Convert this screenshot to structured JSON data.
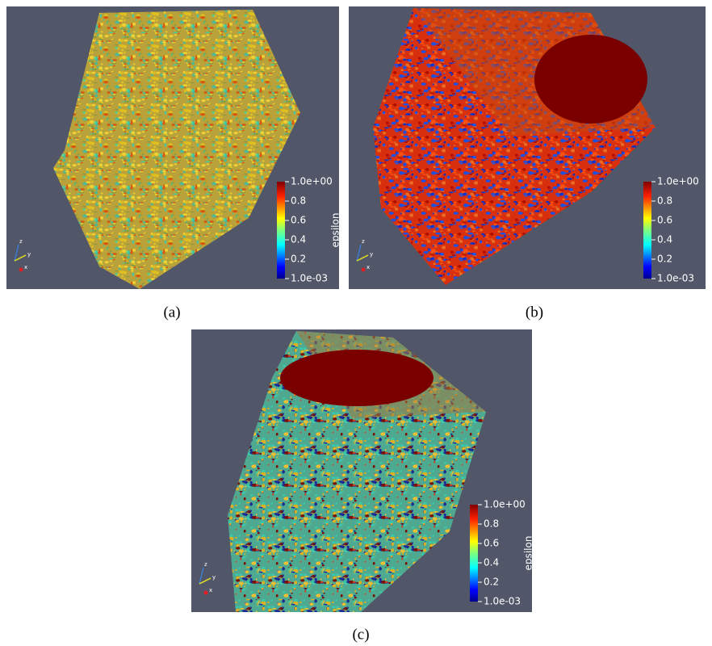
{
  "panels": [
    {
      "label": "(a)",
      "colorbar": {
        "title": "epsilon",
        "ticks": [
          "1.0e+00",
          "0.8",
          "0.6",
          "0.4",
          "0.2",
          "1.0e-03"
        ]
      },
      "axes": [
        "z",
        "y",
        "x"
      ]
    },
    {
      "label": "(b)",
      "colorbar": {
        "ticks": [
          "1.0e+00",
          "0.8",
          "0.6",
          "0.4",
          "0.2",
          "1.0e-03"
        ]
      },
      "axes": [
        "z",
        "y",
        "x"
      ]
    },
    {
      "label": "(c)",
      "colorbar": {
        "title": "epsilon",
        "ticks": [
          "1.0e+00",
          "0.8",
          "0.6",
          "0.4",
          "0.2",
          "1.0e-03"
        ]
      },
      "axes": [
        "z",
        "y",
        "x"
      ]
    }
  ]
}
